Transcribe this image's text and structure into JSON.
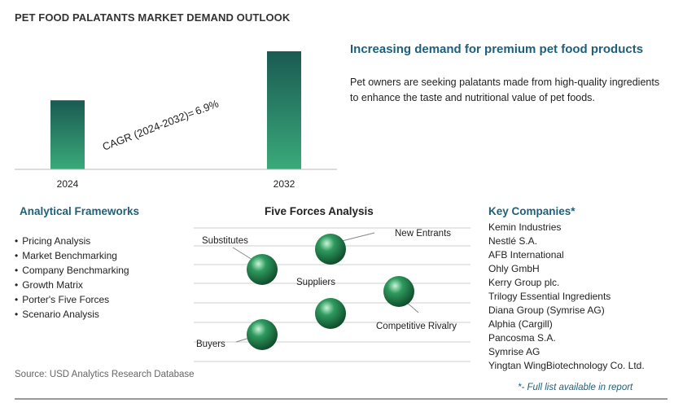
{
  "title": "PET FOOD PALATANTS MARKET DEMAND OUTLOOK",
  "chart_data": {
    "type": "bar",
    "categories": [
      "2024",
      "2032"
    ],
    "values": [
      1.0,
      1.71
    ],
    "annotation": {
      "label": "CAGR (2024-2032)=",
      "value": "6.9%"
    },
    "colors": {
      "bar_top": "#1a5a52",
      "bar_bottom": "#3aaa7a"
    }
  },
  "highlight": {
    "headline": "Increasing demand for premium pet food products",
    "description": "Pet owners are seeking palatants made from high-quality ingredients to enhance the taste and nutritional value of pet foods."
  },
  "frameworks": {
    "title": "Analytical Frameworks",
    "items": [
      "Pricing Analysis",
      "Market Benchmarking",
      "Company Benchmarking",
      "Growth Matrix",
      "Porter's Five Forces",
      "Scenario Analysis"
    ]
  },
  "five_forces": {
    "title": "Five Forces Analysis",
    "labels": {
      "substitutes": "Substitutes",
      "new_entrants": "New Entrants",
      "suppliers": "Suppliers",
      "competitive_rivalry": "Competitive Rivalry",
      "buyers": "Buyers"
    },
    "sphere_color": "#2e9a5e"
  },
  "key_companies": {
    "title": "Key Companies*",
    "items": [
      "Kemin Industries",
      "Nestlé S.A.",
      "AFB International",
      "Ohly GmbH",
      "Kerry Group plc.",
      "Trilogy Essential Ingredients",
      "Diana Group (Symrise AG)",
      "Alphia (Cargill)",
      "Pancosma S.A.",
      "Symrise AG",
      "Yingtan WingBiotechnology Co. Ltd."
    ],
    "note": "*- Full list available in report"
  },
  "source": "Source: USD Analytics Research Database"
}
